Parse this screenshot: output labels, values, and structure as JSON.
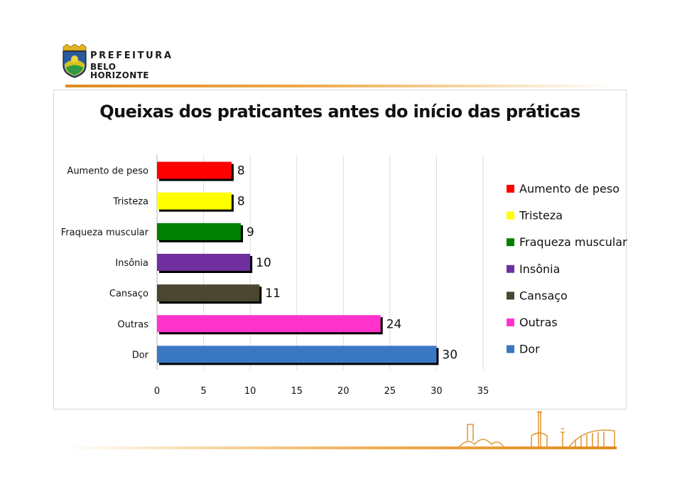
{
  "logo": {
    "line1": "PREFEITURA",
    "line2": "BELO HORIZONTE"
  },
  "chart_data": {
    "type": "bar",
    "orientation": "horizontal",
    "title": "Queixas dos praticantes antes do início das práticas",
    "categories": [
      "Aumento de peso",
      "Tristeza",
      "Fraqueza muscular",
      "Insônia",
      "Cansaço",
      "Outras",
      "Dor"
    ],
    "values": [
      8,
      8,
      9,
      10,
      11,
      24,
      30
    ],
    "colors": [
      "#ff0000",
      "#ffff00",
      "#008000",
      "#7030a0",
      "#4a4630",
      "#ff33cc",
      "#3b78c4"
    ],
    "xlim": [
      0,
      35
    ],
    "xticks": [
      0,
      5,
      10,
      15,
      20,
      25,
      30,
      35
    ],
    "grid": true,
    "legend_placement": "right",
    "legend": [
      "Aumento de peso",
      "Tristeza",
      "Fraqueza muscular",
      "Insônia",
      "Cansaço",
      "Outras",
      "Dor"
    ],
    "xlabel": "",
    "ylabel": ""
  }
}
